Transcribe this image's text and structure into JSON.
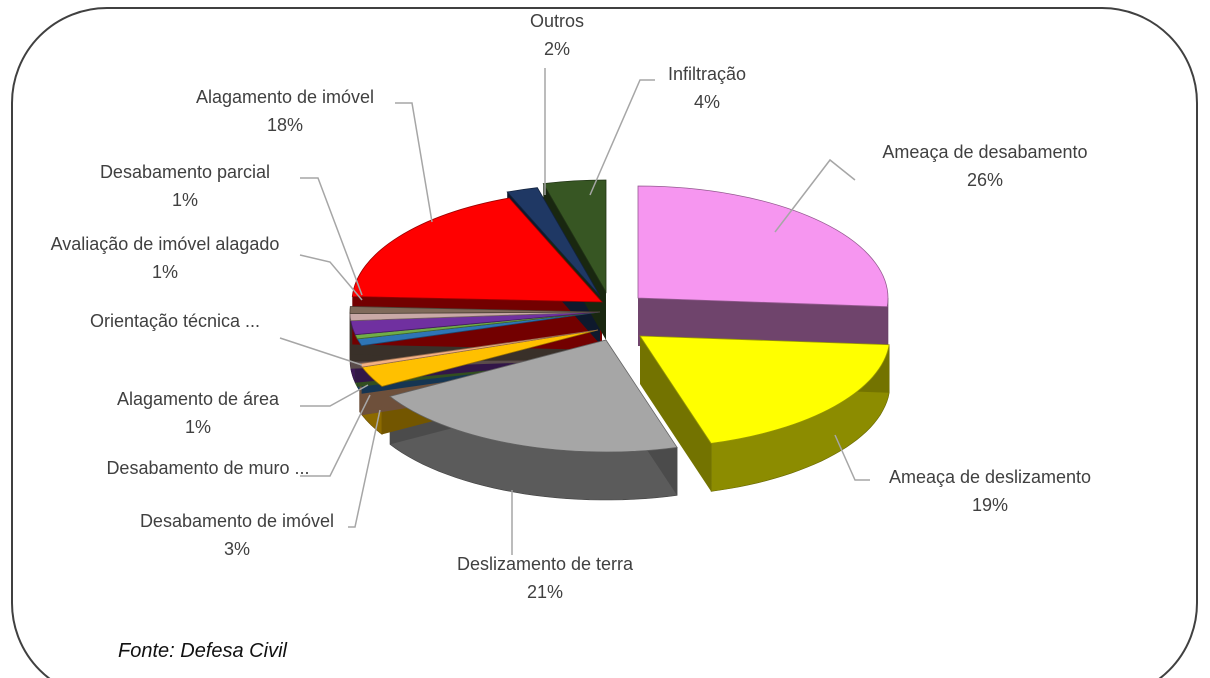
{
  "chart_data": {
    "type": "pie",
    "title": "",
    "slices": [
      {
        "name": "Ameaça de desabamento",
        "pct_label": "26%",
        "value": 26,
        "color": "#F696F0"
      },
      {
        "name": "Ameaça de deslizamento",
        "pct_label": "19%",
        "value": 19,
        "color": "#FFFF00"
      },
      {
        "name": "Deslizamento de terra",
        "pct_label": "21%",
        "value": 21,
        "color": "#A6A6A6"
      },
      {
        "name": "Desabamento de imóvel",
        "pct_label": "3%",
        "value": 3,
        "color": "#FFC000"
      },
      {
        "name": "Desabamento de muro ...",
        "pct_label": "",
        "value": 0.5,
        "color": "#F4B183"
      },
      {
        "name": "Alagamento de área",
        "pct_label": "1%",
        "value": 1,
        "color": "#2E75B6"
      },
      {
        "name": "Orientação técnica ...",
        "pct_label": "",
        "value": 0.6,
        "color": "#70AD47"
      },
      {
        "name": "",
        "pct_label": "",
        "value": 2,
        "color": "#7030A0"
      },
      {
        "name": "Avaliação de imóvel alagado",
        "pct_label": "1%",
        "value": 1,
        "color": "#C9A9A6"
      },
      {
        "name": "Desabamento parcial",
        "pct_label": "1%",
        "value": 1,
        "color": "#7F6A5A"
      },
      {
        "name": "Alagamento de imóvel",
        "pct_label": "18%",
        "value": 18,
        "color": "#FF0000"
      },
      {
        "name": "Outros",
        "pct_label": "2%",
        "value": 2,
        "color": "#1F3864"
      },
      {
        "name": "Infiltração",
        "pct_label": "4%",
        "value": 4,
        "color": "#375623"
      }
    ]
  },
  "source": "Fonte: Defesa Civil"
}
